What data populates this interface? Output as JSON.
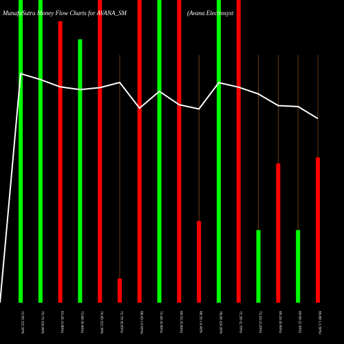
{
  "chart_data": {
    "type": "bar",
    "title": "MunafaSutra  Money Flow  Charts for AVANA_SM",
    "subtitle": "(Avana  Electrosyst",
    "categories": [
      "Tue 22 Jul 2025",
      "Mon 21 Jul 2025",
      "Fri 18 Jul 2025",
      "Thu 17 Jul 2025",
      "Wed 16 Jul 2025",
      "Tue 15 Jul 2025",
      "Mon 14 Jul 2025",
      "Fri 11 Jul 2025",
      "Thu 10 Jul 2025",
      "Wed 09 Jul 2025",
      "Tue 08 Jul 2025",
      "Mon 07 Jul 2025",
      "Fri 04 Jul 2025",
      "Thu 03 Jul 2025",
      "Wed 02 Jul 2025",
      "Tue 01 Jul 2025"
    ],
    "tick_labels": [
      "72.65 (12.50%",
      "70.75 (16.06%",
      "63.45 (3.80%)",
      "73.80 (9.90%)",
      "74.85 (13.30%",
      "72.70 (0.95%)",
      "68.45 (-0.95%)",
      "72.40 (0.90%)",
      "69.55 (5.90%)",
      "68.35 (-0.40%",
      "78.00 (14.00%",
      "72.30 (1.70%)",
      "71.10 (3.20%)",
      "69.20 (0.90%)",
      "69.00 (2.30%)",
      "66.80 (-1.30%)"
    ],
    "series": [
      {
        "values": [
          100,
          100,
          93,
          87,
          100,
          8,
          100,
          100,
          100,
          27,
          100,
          100,
          24,
          46,
          24,
          48
        ],
        "colors": [
          "green",
          "green",
          "red",
          "green",
          "red",
          "red",
          "red",
          "green",
          "red",
          "red",
          "green",
          "red",
          "green",
          "red",
          "green",
          "red"
        ]
      },
      {
        "values": [
          72.65,
          70.75,
          68.45,
          67.6,
          68.2,
          69.85,
          61.7,
          67.05,
          62.8,
          61.45,
          69.8,
          68.35,
          66.2,
          62.5,
          62.2,
          58.4
        ]
      }
    ],
    "ylim": [
      0,
      100
    ],
    "line_ylim": [
      0,
      96
    ],
    "bar_colors": {
      "green": "#00ff00",
      "red": "#ff0000"
    },
    "line_color": "#ffffff",
    "grid_line_color": "#8b4a16",
    "background": "#000000"
  }
}
